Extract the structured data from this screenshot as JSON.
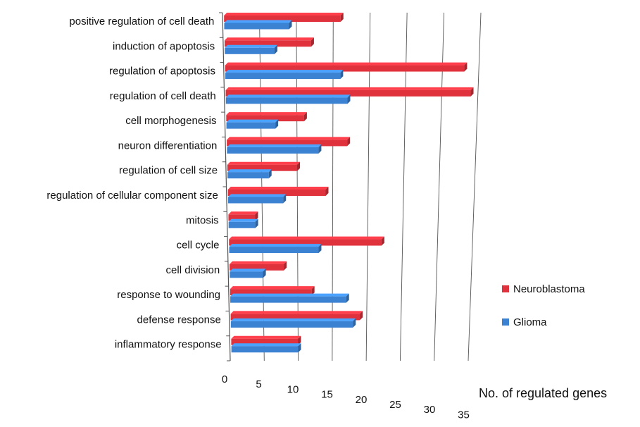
{
  "chart_data": {
    "type": "bar",
    "orientation": "horizontal",
    "style": "3d",
    "categories": [
      "positive regulation of cell death",
      "induction of apoptosis",
      "regulation of apoptosis",
      "regulation of cell death",
      "cell morphogenesis",
      "neuron differentiation",
      "regulation of cell size",
      "regulation of cellular component size",
      "mitosis",
      "cell cycle",
      "cell division",
      "response to wounding",
      "defense response",
      "inflammatory response"
    ],
    "series": [
      {
        "name": "Neuroblastoma",
        "color": "#e0323c",
        "values": [
          16,
          12,
          33,
          34,
          11,
          17,
          10,
          14,
          4,
          22,
          8,
          12,
          19,
          10
        ]
      },
      {
        "name": "Glioma",
        "color": "#3c82d2",
        "values": [
          9,
          7,
          16,
          17,
          7,
          13,
          6,
          8,
          4,
          13,
          5,
          17,
          18,
          10
        ]
      }
    ],
    "xlabel": "No. of regulated genes",
    "ylabel": "",
    "xlim": [
      0,
      35
    ],
    "xticks": [
      0,
      5,
      10,
      15,
      20,
      25,
      30,
      35
    ],
    "grid": true,
    "legend_position": "right"
  }
}
